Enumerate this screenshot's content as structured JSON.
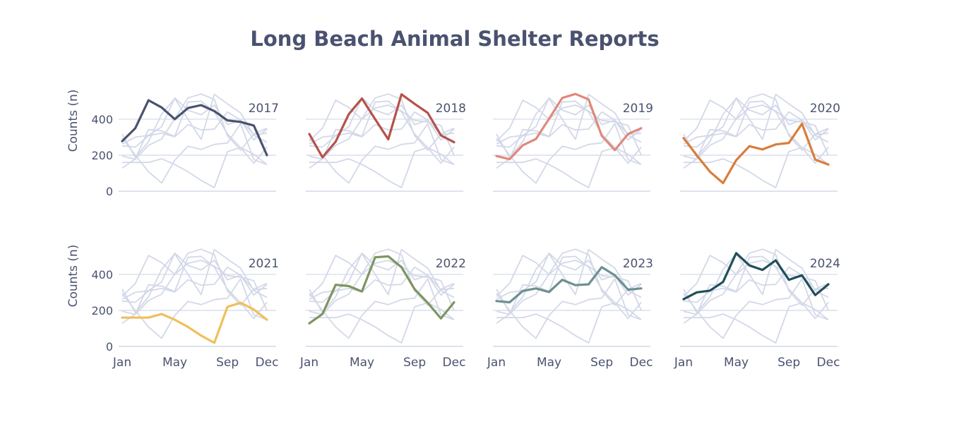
{
  "chart_data": {
    "type": "line",
    "title": "Long Beach Animal Shelter Reports",
    "ylabel": "Counts (n)",
    "ylim": [
      0,
      580
    ],
    "yticks": [
      0,
      200,
      400
    ],
    "x": [
      "Jan",
      "Feb",
      "Mar",
      "Apr",
      "May",
      "Jun",
      "Jul",
      "Aug",
      "Sep",
      "Oct",
      "Nov",
      "Dec"
    ],
    "xtick_labels": [
      "Jan",
      "May",
      "Sep",
      "Dec"
    ],
    "grid": true,
    "layout": "small multiples, 2 rows x 4 columns; all series drawn in light gray behind each panel with the panel's year highlighted",
    "background_series_color": "#d3d8e8",
    "gridline_color": "#d3d8e8",
    "series": [
      {
        "name": "2017",
        "color": "#4a5270",
        "values": [
          278,
          350,
          505,
          465,
          400,
          462,
          478,
          445,
          393,
          385,
          365,
          200
        ]
      },
      {
        "name": "2018",
        "color": "#b5524b",
        "values": [
          318,
          188,
          275,
          428,
          515,
          400,
          288,
          538,
          485,
          435,
          310,
          272
        ]
      },
      {
        "name": "2019",
        "color": "#e0897b",
        "values": [
          195,
          178,
          255,
          290,
          402,
          518,
          540,
          510,
          308,
          228,
          318,
          350
        ]
      },
      {
        "name": "2020",
        "color": "#d97d3a",
        "values": [
          295,
          200,
          108,
          45,
          172,
          250,
          232,
          260,
          268,
          375,
          175,
          148
        ]
      },
      {
        "name": "2021",
        "color": "#f0bf5a",
        "values": [
          160,
          160,
          160,
          180,
          148,
          108,
          60,
          20,
          220,
          242,
          205,
          148
        ]
      },
      {
        "name": "2022",
        "color": "#7e9460",
        "values": [
          128,
          180,
          342,
          335,
          305,
          495,
          500,
          440,
          318,
          242,
          155,
          245
        ]
      },
      {
        "name": "2023",
        "color": "#6c9090",
        "values": [
          252,
          245,
          308,
          322,
          302,
          370,
          340,
          345,
          440,
          395,
          315,
          322
        ]
      },
      {
        "name": "2024",
        "color": "#1f4f5a",
        "values": [
          262,
          300,
          310,
          358,
          518,
          450,
          425,
          478,
          370,
          395,
          285,
          345
        ]
      }
    ]
  }
}
